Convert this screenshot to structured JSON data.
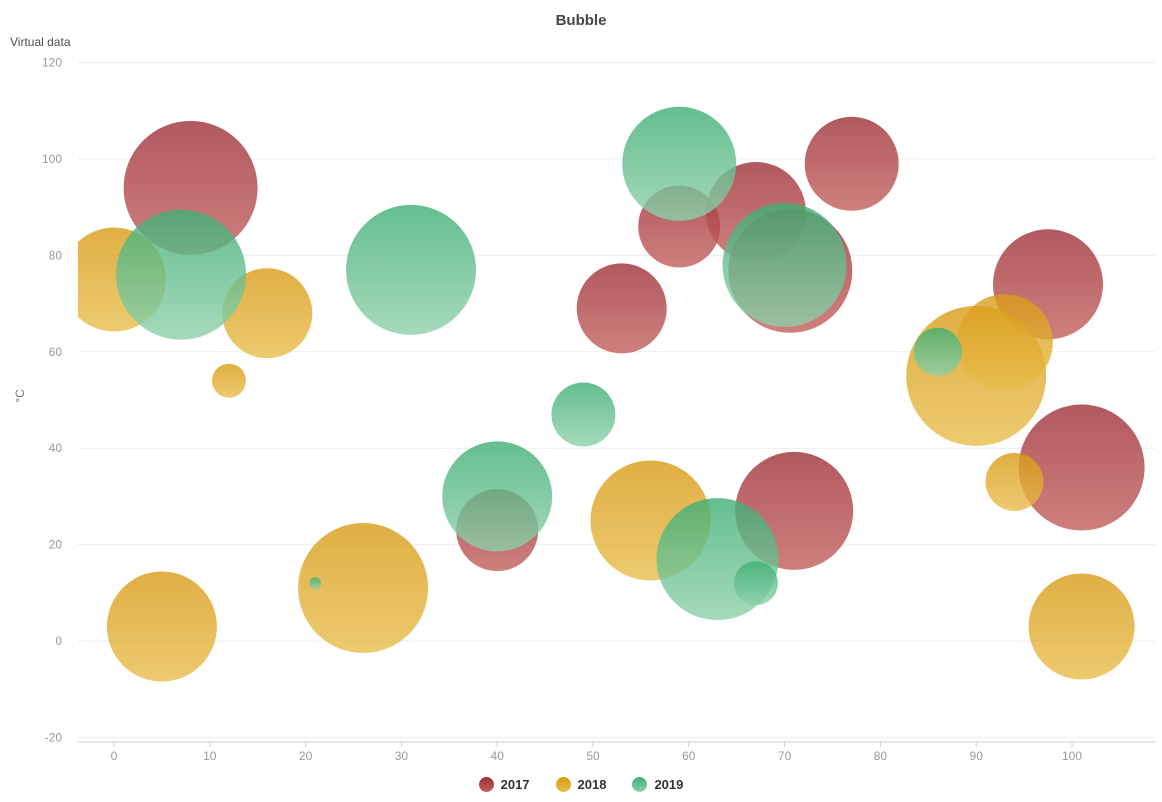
{
  "chart_data": {
    "type": "scatter",
    "title": "Bubble",
    "y_axis_name": "Virtual data",
    "xlabel": "",
    "ylabel": "°C",
    "xlim": [
      0,
      100
    ],
    "ylim": [
      -20,
      120
    ],
    "x_ticks": [
      0,
      10,
      20,
      30,
      40,
      50,
      60,
      70,
      80,
      90,
      100
    ],
    "y_ticks": [
      -20,
      0,
      20,
      40,
      60,
      80,
      100,
      120
    ],
    "grid": "horizontal-gridlines-only",
    "legend_position": "bottom-center",
    "point_format": "[x, y, bubble_diameter_px]",
    "series": [
      {
        "name": "2017",
        "legend_color": "#b04a50",
        "gradient_top": "#9e2f38",
        "gradient_bottom": "#c2605c",
        "points": [
          [
            8,
            94,
            134
          ],
          [
            59,
            86,
            82
          ],
          [
            67,
            89,
            100
          ],
          [
            77,
            99,
            94
          ],
          [
            70.6,
            76.8,
            124
          ],
          [
            53,
            69,
            90
          ],
          [
            40,
            23,
            82
          ],
          [
            71,
            27,
            118
          ],
          [
            97.5,
            74,
            110
          ],
          [
            101,
            36,
            126
          ]
        ]
      },
      {
        "name": "2018",
        "legend_color": "#e2b13c",
        "gradient_top": "#d89b16",
        "gradient_bottom": "#e8bd4a",
        "points": [
          [
            0,
            75,
            104
          ],
          [
            16,
            68,
            90
          ],
          [
            12,
            54,
            34
          ],
          [
            5,
            3,
            110
          ],
          [
            26,
            11,
            130
          ],
          [
            56,
            25,
            120
          ],
          [
            90,
            55,
            140
          ],
          [
            93,
            62,
            96
          ],
          [
            94,
            33,
            58
          ],
          [
            101,
            3,
            106
          ]
        ]
      },
      {
        "name": "2019",
        "legend_color": "#6ec394",
        "gradient_top": "#3eae74",
        "gradient_bottom": "#8ed0aa",
        "points": [
          [
            7,
            76,
            130
          ],
          [
            31,
            77,
            130
          ],
          [
            59,
            99,
            114
          ],
          [
            70,
            78,
            124
          ],
          [
            49,
            47,
            64
          ],
          [
            40,
            30,
            110
          ],
          [
            63,
            17,
            122
          ],
          [
            67,
            12,
            44
          ],
          [
            86,
            60,
            48
          ],
          [
            21,
            12,
            12
          ]
        ]
      }
    ],
    "axis_style": {
      "gridline_color": "#ececec",
      "axis_line_color": "#ccc",
      "tick_label_color": "#999"
    }
  }
}
